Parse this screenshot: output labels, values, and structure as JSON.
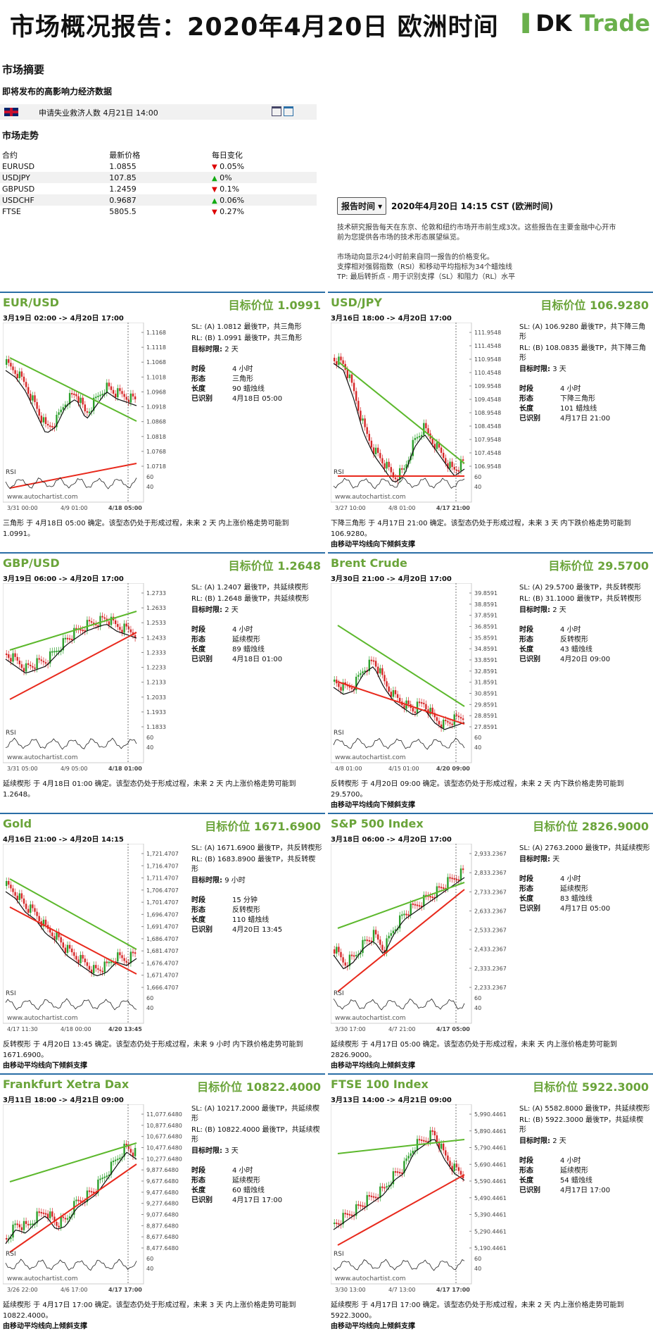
{
  "header": {
    "title": "市场概况报告：2020年4月20日 欧洲时间",
    "logo_a": "DK",
    "logo_b": " Trade"
  },
  "summary": {
    "title": "市场摘要",
    "events_title": "即将发布的高影响力经济数据",
    "event": "申请失业救济人数 4月21日 14:00",
    "trend_title": "市场走势",
    "headers": [
      "合约",
      "最新价格",
      "每日变化"
    ],
    "rows": [
      {
        "sym": "EURUSD",
        "price": "1.0855",
        "dir": "▼",
        "chg": "0.05%"
      },
      {
        "sym": "USDJPY",
        "price": "107.85",
        "dir": "▲",
        "chg": "0%"
      },
      {
        "sym": "GBPUSD",
        "price": "1.2459",
        "dir": "▼",
        "chg": "0.1%"
      },
      {
        "sym": "USDCHF",
        "price": "0.9687",
        "dir": "▲",
        "chg": "0.06%"
      },
      {
        "sym": "FTSE",
        "price": "5805.5",
        "dir": "▼",
        "chg": "0.27%"
      }
    ]
  },
  "report": {
    "button": "报告时间 ▾",
    "time": "2020年4月20日 14:15 CST (欧洲时间)",
    "lines": [
      "技术研究报告每天在东京、伦敦和纽约市场开市前生成3次。这些报告在主要金融中心开市",
      "前为您提供各市场的技术形态展望纵览。",
      "",
      "市场动向显示24小时前来自同一报告的价格变化。",
      "支撑相对强弱指数（RSI）和移动平均指标为34个蜡烛线",
      "TP: 最后转折点 - 用于识别支撑（SL）和阻力（RL）水平"
    ]
  },
  "labels": {
    "period": "时段",
    "pattern": "形态",
    "length": "长度",
    "identified": "已识别",
    "target_time": "目标时限:",
    "rsi": "RSI",
    "watermark": "www.autochartist.com"
  },
  "panels": [
    {
      "name": "EUR/USD",
      "target": "目标价位 1.0991",
      "range": "3月19日 02:00 -> 4月20日 17:00",
      "sl": "SL: (A) 1.0812 最後TP，共三角形",
      "rl": "RL: (B) 1.0991 最後TP，共三角形",
      "tt": "2 天",
      "period": "4 小时",
      "pattern": "三角形",
      "length": "90 蜡烛线",
      "identified": "4月18日 05:00",
      "desc": "三角形 于 4月18日 05:00 确定。该型态仍处于形成过程，未来 2 天 内上涨价格走势可能到 1.0991。",
      "trend": "",
      "yticks": [
        "1.1168",
        "1.1118",
        "1.1068",
        "1.1018",
        "1.0968",
        "1.0918",
        "1.0868",
        "1.0818",
        "1.0768",
        "1.0718"
      ],
      "xticks": [
        "3/31 00:00",
        "4/9 01:00",
        "4/18 05:00"
      ]
    },
    {
      "name": "USD/JPY",
      "target": "目标价位 106.9280",
      "range": "3月16日 18:00 -> 4月20日 17:00",
      "sl": "SL: (A) 106.9280 最後TP，共下降三角形",
      "rl": "RL: (B) 108.0835 最後TP，共下降三角形",
      "tt": "3 天",
      "period": "4 小时",
      "pattern": "下降三角形",
      "length": "101 蜡烛线",
      "identified": "4月17日 21:00",
      "desc": "下降三角形 于 4月17日 21:00 确定。该型态仍处于形成过程，未来 3 天 内下跌价格走势可能到 106.9280。",
      "trend": "由移动平均线向下倾斜支撑",
      "yticks": [
        "111.9548",
        "111.4548",
        "110.9548",
        "110.4548",
        "109.9548",
        "109.4548",
        "108.9548",
        "108.4548",
        "107.9548",
        "107.4548",
        "106.9548"
      ],
      "xticks": [
        "3/27 10:00",
        "4/8 01:00",
        "4/17 21:00"
      ]
    },
    {
      "name": "GBP/USD",
      "target": "目标价位 1.2648",
      "range": "3月19日 06:00 -> 4月20日 17:00",
      "sl": "SL: (A) 1.2407 最後TP，共延续楔形",
      "rl": "RL: (B) 1.2648 最後TP，共延续楔形",
      "tt": "2 天",
      "period": "4 小时",
      "pattern": "延续楔形",
      "length": "89 蜡烛线",
      "identified": "4月18日 01:00",
      "desc": "延续楔形 于 4月18日 01:00 确定。该型态仍处于形成过程，未来 2 天 内上涨价格走势可能到 1.2648。",
      "trend": "",
      "yticks": [
        "1.2733",
        "1.2633",
        "1.2533",
        "1.2433",
        "1.2333",
        "1.2233",
        "1.2133",
        "1.2033",
        "1.1933",
        "1.1833"
      ],
      "xticks": [
        "3/31 05:00",
        "4/9 05:00",
        "4/18 01:00"
      ]
    },
    {
      "name": "Brent Crude",
      "target": "目标价位 29.5700",
      "range": "3月30日 21:00 -> 4月20日 17:00",
      "sl": "SL: (A) 29.5700 最後TP，共反转楔形",
      "rl": "RL: (B) 31.1000 最後TP，共反转楔形",
      "tt": "2 天",
      "period": "4 小时",
      "pattern": "反转楔形",
      "length": "43 蜡烛线",
      "identified": "4月20日 09:00",
      "desc": "反转楔形 于 4月20日 09:00 确定。该型态仍处于形成过程，未来 2 天 内下跌价格走势可能到 29.5700。",
      "trend": "由移动平均线向下倾斜支撑",
      "yticks": [
        "39.8591",
        "38.8591",
        "37.8591",
        "36.8591",
        "35.8591",
        "34.8591",
        "33.8591",
        "32.8591",
        "31.8591",
        "30.8591",
        "29.8591",
        "28.8591",
        "27.8591"
      ],
      "xticks": [
        "4/8 01:00",
        "4/15 01:00",
        "4/20 09:00"
      ]
    },
    {
      "name": "Gold",
      "target": "目标价位 1671.6900",
      "range": "4月16日 21:00 -> 4月20日 14:15",
      "sl": "SL: (A) 1671.6900 最後TP，共反转楔形",
      "rl": "RL: (B) 1683.8900 最後TP，共反转楔形",
      "tt": "9 小时",
      "period": "15 分钟",
      "pattern": "反转楔形",
      "length": "110 蜡烛线",
      "identified": "4月20日 13:45",
      "desc": "反转楔形 于 4月20日 13:45 确定。该型态仍处于形成过程，未来 9 小时 内下跌价格走势可能到 1671.6900。",
      "trend": "由移动平均线向下倾斜支撑",
      "yticks": [
        "1,721.4707",
        "1,716.4707",
        "1,711.4707",
        "1,706.4707",
        "1,701.4707",
        "1,696.4707",
        "1,691.4707",
        "1,686.4707",
        "1,681.4707",
        "1,676.4707",
        "1,671.4707",
        "1,666.4707"
      ],
      "xticks": [
        "4/17 11:30",
        "4/18 00:00",
        "4/20 13:45"
      ]
    },
    {
      "name": "S&P 500 Index",
      "target": "目标价位 2826.9000",
      "range": "3月18日 06:00 -> 4月20日 17:00",
      "sl": "SL: (A) 2763.2000 最後TP，共延续楔形",
      "rl": "",
      "tt": "天",
      "period": "4 小时",
      "pattern": "延续楔形",
      "length": "83 蜡烛线",
      "identified": "4月17日 05:00",
      "desc": "延续楔形 于 4月17日 05:00 确定。该型态仍处于形成过程，未来 天 内上涨价格走势可能到 2826.9000。",
      "trend": "由移动平均线向上倾斜支撑",
      "yticks": [
        "2,933.2367",
        "2,833.2367",
        "2,733.2367",
        "2,633.2367",
        "2,533.2367",
        "2,433.2367",
        "2,333.2367",
        "2,233.2367"
      ],
      "xticks": [
        "3/30 17:00",
        "4/7 21:00",
        "4/17 05:00"
      ]
    },
    {
      "name": "Frankfurt Xetra Dax",
      "target": "目标价位 10822.4000",
      "range": "3月11日 18:00 -> 4月21日 09:00",
      "sl": "SL: (A) 10217.2000 最後TP，共延续楔形",
      "rl": "RL: (B) 10822.4000 最後TP，共延续楔形",
      "tt": "3 天",
      "period": "4 小时",
      "pattern": "延续楔形",
      "length": "60 蜡烛线",
      "identified": "4月17日 17:00",
      "desc": "延续楔形 于 4月17日 17:00 确定。该型态仍处于形成过程，未来 3 天 内上涨价格走势可能到 10822.4000。",
      "trend": "由移动平均线向上倾斜支撑",
      "yticks": [
        "11,077.6480",
        "10,877.6480",
        "10,677.6480",
        "10,477.6480",
        "10,277.6480",
        "9,877.6480",
        "9,677.6480",
        "9,477.6480",
        "9,277.6480",
        "9,077.6480",
        "8,877.6480",
        "8,677.6480",
        "8,477.6480"
      ],
      "xticks": [
        "3/26 22:00",
        "4/6 17:00",
        "4/17 17:00"
      ]
    },
    {
      "name": "FTSE 100 Index",
      "target": "目标价位 5922.3000",
      "range": "3月13日 14:00 -> 4月21日 09:00",
      "sl": "SL: (A) 5582.8000 最後TP，共延续楔形",
      "rl": "RL: (B) 5922.3000 最後TP，共延续楔形",
      "tt": "2 天",
      "period": "4 小时",
      "pattern": "延续楔形",
      "length": "54 蜡烛线",
      "identified": "4月17日 17:00",
      "desc": "延续楔形 于 4月17日 17:00 确定。该型态仍处于形成过程，未来 2 天 内上涨价格走势可能到 5922.3000。",
      "trend": "由移动平均线向上倾斜支撑",
      "yticks": [
        "5,990.4461",
        "5,890.4461",
        "5,790.4461",
        "5,690.4461",
        "5,590.4461",
        "5,490.4461",
        "5,390.4461",
        "5,290.4461",
        "5,190.4461"
      ],
      "xticks": [
        "3/30 13:00",
        "4/7 13:00",
        "4/17 17:00"
      ]
    }
  ]
}
